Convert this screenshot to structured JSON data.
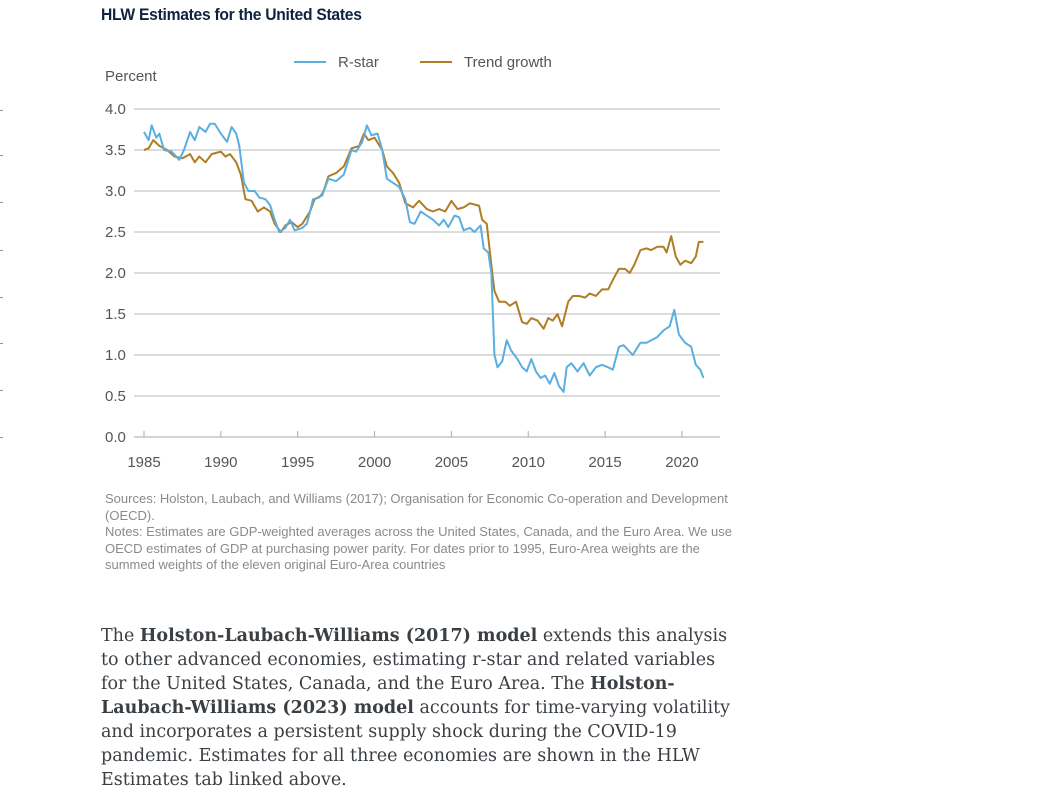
{
  "title": "HLW Estimates for the United States",
  "chart_data": {
    "type": "line",
    "title": "HLW Estimates for the United States",
    "ylabel": "Percent",
    "xlabel": "",
    "ylim": [
      0,
      4.0
    ],
    "xlim": [
      1985,
      2022.5
    ],
    "yticks": [
      "0.0",
      "0.5",
      "1.0",
      "1.5",
      "2.0",
      "2.5",
      "3.0",
      "3.5",
      "4.0"
    ],
    "xticks": [
      "1985",
      "1990",
      "1995",
      "2000",
      "2005",
      "2010",
      "2015",
      "2020"
    ],
    "grid": true,
    "legend": "top-center",
    "series": [
      {
        "name": "R-star",
        "color": "#5aaee0",
        "x": [
          1985.0,
          1985.3,
          1985.5,
          1985.8,
          1986.0,
          1986.3,
          1986.8,
          1987.3,
          1987.6,
          1988.0,
          1988.3,
          1988.6,
          1989.0,
          1989.3,
          1989.6,
          1990.0,
          1990.4,
          1990.7,
          1991.0,
          1991.2,
          1991.5,
          1991.8,
          1992.2,
          1992.5,
          1992.9,
          1993.2,
          1993.5,
          1993.8,
          1994.2,
          1994.5,
          1994.8,
          1995.3,
          1995.6,
          1996.0,
          1996.4,
          1996.7,
          1997.0,
          1997.5,
          1998.0,
          1998.5,
          1998.8,
          1999.2,
          1999.5,
          1999.8,
          2000.2,
          2000.5,
          2000.8,
          2001.2,
          2001.6,
          2002.0,
          2002.3,
          2002.6,
          2003.0,
          2003.4,
          2003.8,
          2004.2,
          2004.5,
          2004.8,
          2005.2,
          2005.5,
          2005.8,
          2006.2,
          2006.5,
          2006.9,
          2007.1,
          2007.4,
          2007.6,
          2007.8,
          2008.0,
          2008.3,
          2008.6,
          2008.9,
          2009.3,
          2009.6,
          2009.9,
          2010.2,
          2010.5,
          2010.8,
          2011.1,
          2011.4,
          2011.7,
          2012.0,
          2012.3,
          2012.5,
          2012.8,
          2013.2,
          2013.6,
          2014.0,
          2014.4,
          2014.8,
          2015.2,
          2015.5,
          2015.9,
          2016.2,
          2016.8,
          2017.3,
          2017.7,
          2018.0,
          2018.4,
          2018.8,
          2019.2,
          2019.5,
          2019.8,
          2020.2,
          2020.6,
          2020.9,
          2021.2,
          2021.4
        ],
        "values": [
          3.72,
          3.62,
          3.8,
          3.65,
          3.7,
          3.5,
          3.48,
          3.38,
          3.5,
          3.72,
          3.62,
          3.78,
          3.72,
          3.82,
          3.82,
          3.7,
          3.6,
          3.78,
          3.7,
          3.55,
          3.1,
          3.0,
          3.0,
          2.92,
          2.9,
          2.83,
          2.65,
          2.5,
          2.55,
          2.65,
          2.52,
          2.55,
          2.6,
          2.9,
          2.92,
          3.0,
          3.15,
          3.12,
          3.2,
          3.5,
          3.48,
          3.6,
          3.8,
          3.68,
          3.7,
          3.5,
          3.15,
          3.1,
          3.05,
          2.9,
          2.62,
          2.6,
          2.75,
          2.7,
          2.65,
          2.58,
          2.65,
          2.56,
          2.7,
          2.68,
          2.52,
          2.55,
          2.5,
          2.58,
          2.3,
          2.25,
          2.0,
          1.0,
          0.85,
          0.92,
          1.18,
          1.05,
          0.95,
          0.85,
          0.8,
          0.95,
          0.8,
          0.72,
          0.75,
          0.65,
          0.78,
          0.62,
          0.55,
          0.85,
          0.9,
          0.8,
          0.9,
          0.75,
          0.85,
          0.88,
          0.85,
          0.82,
          1.1,
          1.12,
          1.0,
          1.15,
          1.15,
          1.18,
          1.22,
          1.3,
          1.35,
          1.55,
          1.25,
          1.15,
          1.1,
          0.88,
          0.82,
          0.72
        ]
      },
      {
        "name": "Trend growth",
        "color": "#b07d25",
        "x": [
          1985.0,
          1985.3,
          1985.6,
          1986.0,
          1986.5,
          1987.0,
          1987.5,
          1988.0,
          1988.3,
          1988.6,
          1989.0,
          1989.4,
          1990.0,
          1990.3,
          1990.6,
          1991.0,
          1991.3,
          1991.6,
          1992.0,
          1992.4,
          1992.8,
          1993.2,
          1993.5,
          1993.9,
          1994.2,
          1994.6,
          1995.0,
          1995.3,
          1995.8,
          1996.1,
          1996.6,
          1997.0,
          1997.5,
          1998.0,
          1998.5,
          1999.0,
          1999.3,
          1999.6,
          2000.0,
          2000.5,
          2000.8,
          2001.2,
          2001.6,
          2002.0,
          2002.5,
          2002.9,
          2003.4,
          2003.8,
          2004.2,
          2004.6,
          2005.0,
          2005.4,
          2005.8,
          2006.2,
          2006.8,
          2007.0,
          2007.3,
          2007.6,
          2007.8,
          2008.1,
          2008.5,
          2008.8,
          2009.2,
          2009.6,
          2009.9,
          2010.2,
          2010.6,
          2011.0,
          2011.3,
          2011.6,
          2011.9,
          2012.2,
          2012.6,
          2012.9,
          2013.3,
          2013.7,
          2014.0,
          2014.4,
          2014.8,
          2015.2,
          2015.6,
          2015.9,
          2016.3,
          2016.6,
          2016.9,
          2017.3,
          2017.7,
          2018.0,
          2018.4,
          2018.8,
          2019.0,
          2019.3,
          2019.6,
          2019.9,
          2020.2,
          2020.6,
          2020.9,
          2021.1,
          2021.4
        ],
        "values": [
          3.5,
          3.52,
          3.62,
          3.55,
          3.5,
          3.42,
          3.4,
          3.45,
          3.35,
          3.42,
          3.35,
          3.45,
          3.48,
          3.42,
          3.45,
          3.35,
          3.2,
          2.9,
          2.88,
          2.75,
          2.8,
          2.75,
          2.6,
          2.5,
          2.58,
          2.62,
          2.56,
          2.6,
          2.75,
          2.9,
          2.95,
          3.18,
          3.22,
          3.3,
          3.52,
          3.55,
          3.7,
          3.62,
          3.65,
          3.5,
          3.3,
          3.22,
          3.1,
          2.85,
          2.8,
          2.88,
          2.78,
          2.75,
          2.78,
          2.75,
          2.88,
          2.78,
          2.8,
          2.85,
          2.82,
          2.65,
          2.6,
          2.1,
          1.78,
          1.65,
          1.65,
          1.6,
          1.65,
          1.4,
          1.38,
          1.45,
          1.42,
          1.32,
          1.45,
          1.42,
          1.5,
          1.35,
          1.65,
          1.72,
          1.72,
          1.7,
          1.75,
          1.72,
          1.8,
          1.8,
          1.95,
          2.05,
          2.05,
          2.0,
          2.1,
          2.28,
          2.3,
          2.28,
          2.32,
          2.32,
          2.25,
          2.45,
          2.2,
          2.1,
          2.15,
          2.12,
          2.2,
          2.38,
          2.38
        ]
      }
    ]
  },
  "notes": {
    "sources": "Sources: Holston, Laubach, and Williams (2017); Organisation for Economic Co-operation and Development (OECD).",
    "notes": "Notes: Estimates are GDP-weighted averages across the United States, Canada, and the Euro Area. We use OECD estimates of GDP at purchasing power parity. For dates prior to 1995, Euro-Area weights are the summed weights of the eleven original Euro-Area countries"
  },
  "paragraph": {
    "link1": "Holston-Laubach-Williams (2017) model",
    "text1": " extends this analysis to other advanced economies, estimating r-star and related variables for the United States, Canada, and the Euro Area. The ",
    "link2": "Holston-Laubach-Williams (2023) model",
    "text2": " accounts for time-varying volatility and incorporates a persistent supply shock during the COVID-19 pandemic. Estimates for all three economies are shown in the HLW Estimates tab linked above.",
    "prefix": "The "
  }
}
